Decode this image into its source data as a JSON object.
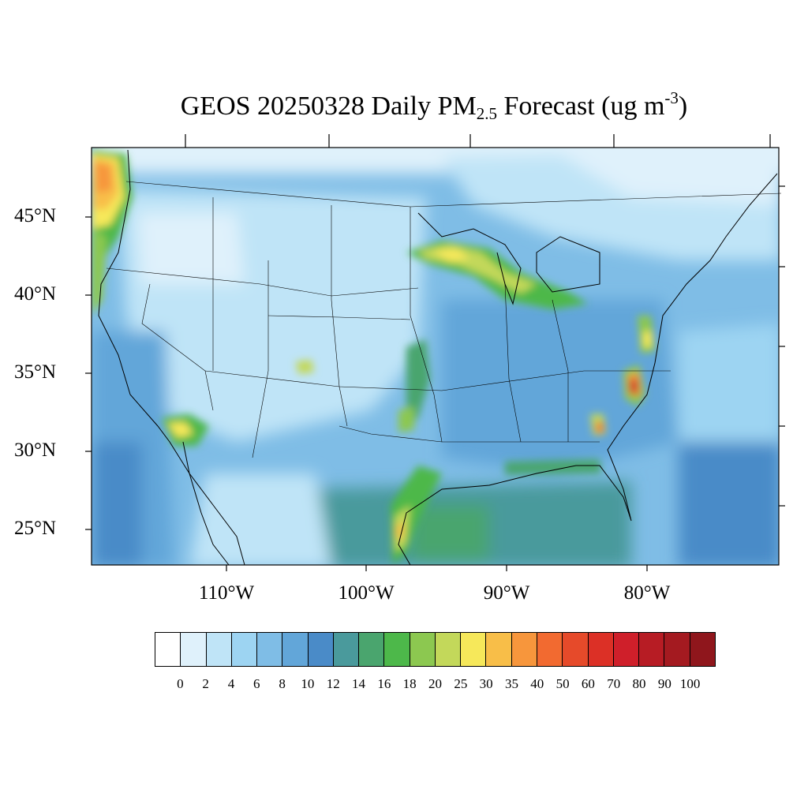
{
  "title": {
    "main": "GEOS 20250328 Daily PM",
    "sub": "2.5",
    "mid": " Forecast (ug m",
    "sup": "-3",
    "end": ")"
  },
  "axes": {
    "lat_labels": [
      "45°N",
      "40°N",
      "35°N",
      "30°N",
      "25°N"
    ],
    "lon_labels": [
      "110°W",
      "100°W",
      "90°W",
      "80°W"
    ]
  },
  "colorbar": {
    "colors": [
      "#ffffff",
      "#dff1fb",
      "#bfe4f7",
      "#9dd4f2",
      "#7fbde6",
      "#62a6d9",
      "#4a8bc8",
      "#4a9a9c",
      "#4aa56e",
      "#4db84a",
      "#8cc850",
      "#c3d85a",
      "#f6e85a",
      "#f8be48",
      "#f7963c",
      "#f26a30",
      "#e64a2a",
      "#dc3026",
      "#cf1f2a",
      "#b71c24",
      "#a41a20",
      "#8f161c"
    ],
    "labels": [
      "0",
      "2",
      "4",
      "6",
      "8",
      "10",
      "12",
      "14",
      "16",
      "18",
      "20",
      "25",
      "30",
      "35",
      "40",
      "50",
      "60",
      "70",
      "80",
      "90",
      "100"
    ]
  }
}
